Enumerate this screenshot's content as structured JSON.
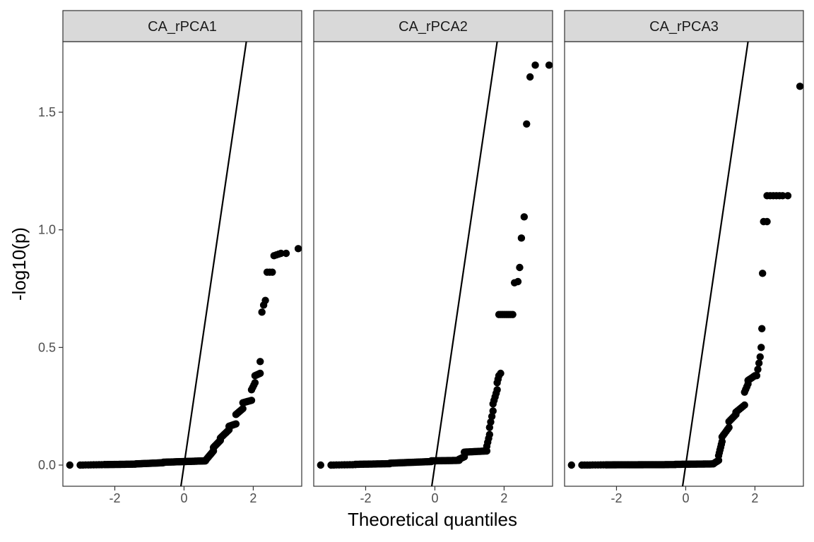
{
  "chart_data": {
    "type": "scatter",
    "subtype": "qq-plot",
    "xlabel": "Theoretical quantiles",
    "ylabel": "-log10(p)",
    "xlim": [
      -3.5,
      3.4
    ],
    "ylim": [
      -0.09,
      1.8
    ],
    "x_ticks": [
      -2,
      0,
      2
    ],
    "y_ticks": [
      0.0,
      0.5,
      1.0,
      1.5
    ],
    "x_tick_labels": [
      "-2",
      "0",
      "2"
    ],
    "y_tick_labels": [
      "0.0",
      "0.5",
      "1.0",
      "1.5"
    ],
    "reference_line": {
      "slope": 1,
      "intercept": 0
    },
    "grid": false,
    "panels": [
      {
        "name": "CA_rPCA1",
        "label": "CA_rPCA1",
        "segments": [
          {
            "x0": -3.3,
            "x1": -3.3,
            "y0": 0.0,
            "y1": 0.0,
            "n": 1
          },
          {
            "x0": -3.0,
            "x1": -2.3,
            "y0": 0.0,
            "y1": 0.002,
            "n": 10
          },
          {
            "x0": -2.3,
            "x1": -1.4,
            "y0": 0.002,
            "y1": 0.004,
            "n": 30
          },
          {
            "x0": -1.4,
            "x1": -0.6,
            "y0": 0.005,
            "y1": 0.01,
            "n": 40
          },
          {
            "x0": -0.6,
            "x1": 0.2,
            "y0": 0.012,
            "y1": 0.016,
            "n": 40
          },
          {
            "x0": 0.2,
            "x1": 0.62,
            "y0": 0.016,
            "y1": 0.018,
            "n": 25
          },
          {
            "x0": 0.65,
            "x1": 0.85,
            "y0": 0.025,
            "y1": 0.06,
            "n": 10
          },
          {
            "x0": 0.85,
            "x1": 1.05,
            "y0": 0.075,
            "y1": 0.105,
            "n": 10
          },
          {
            "x0": 1.05,
            "x1": 1.3,
            "y0": 0.115,
            "y1": 0.15,
            "n": 10
          },
          {
            "x0": 1.3,
            "x1": 1.5,
            "y0": 0.165,
            "y1": 0.175,
            "n": 8
          },
          {
            "x0": 1.5,
            "x1": 1.7,
            "y0": 0.215,
            "y1": 0.24,
            "n": 8
          },
          {
            "x0": 1.7,
            "x1": 1.95,
            "y0": 0.265,
            "y1": 0.275,
            "n": 8
          },
          {
            "x0": 1.95,
            "x1": 2.05,
            "y0": 0.32,
            "y1": 0.35,
            "n": 4
          },
          {
            "x0": 2.05,
            "x1": 2.2,
            "y0": 0.38,
            "y1": 0.39,
            "n": 5
          },
          {
            "x0": 2.2,
            "x1": 2.2,
            "y0": 0.44,
            "y1": 0.44,
            "n": 1
          },
          {
            "x0": 2.25,
            "x1": 2.25,
            "y0": 0.65,
            "y1": 0.65,
            "n": 1
          },
          {
            "x0": 2.3,
            "x1": 2.3,
            "y0": 0.68,
            "y1": 0.68,
            "n": 1
          },
          {
            "x0": 2.35,
            "x1": 2.35,
            "y0": 0.7,
            "y1": 0.7,
            "n": 1
          },
          {
            "x0": 2.4,
            "x1": 2.55,
            "y0": 0.82,
            "y1": 0.82,
            "n": 3
          },
          {
            "x0": 2.6,
            "x1": 2.8,
            "y0": 0.89,
            "y1": 0.9,
            "n": 4
          },
          {
            "x0": 2.95,
            "x1": 2.95,
            "y0": 0.9,
            "y1": 0.9,
            "n": 1
          },
          {
            "x0": 3.3,
            "x1": 3.3,
            "y0": 0.92,
            "y1": 0.92,
            "n": 1
          }
        ]
      },
      {
        "name": "CA_rPCA2",
        "label": "CA_rPCA2",
        "segments": [
          {
            "x0": -3.3,
            "x1": -3.3,
            "y0": 0.0,
            "y1": 0.0,
            "n": 1
          },
          {
            "x0": -3.0,
            "x1": -2.3,
            "y0": 0.0,
            "y1": 0.002,
            "n": 10
          },
          {
            "x0": -2.3,
            "x1": -1.3,
            "y0": 0.003,
            "y1": 0.006,
            "n": 30
          },
          {
            "x0": -1.3,
            "x1": -0.1,
            "y0": 0.008,
            "y1": 0.015,
            "n": 40
          },
          {
            "x0": -0.1,
            "x1": 0.7,
            "y0": 0.018,
            "y1": 0.02,
            "n": 30
          },
          {
            "x0": 0.7,
            "x1": 0.85,
            "y0": 0.025,
            "y1": 0.035,
            "n": 5
          },
          {
            "x0": 0.85,
            "x1": 1.5,
            "y0": 0.055,
            "y1": 0.06,
            "n": 20
          },
          {
            "x0": 1.5,
            "x1": 1.58,
            "y0": 0.08,
            "y1": 0.13,
            "n": 4
          },
          {
            "x0": 1.58,
            "x1": 1.68,
            "y0": 0.16,
            "y1": 0.23,
            "n": 4
          },
          {
            "x0": 1.68,
            "x1": 1.8,
            "y0": 0.26,
            "y1": 0.32,
            "n": 5
          },
          {
            "x0": 1.8,
            "x1": 1.85,
            "y0": 0.35,
            "y1": 0.38,
            "n": 3
          },
          {
            "x0": 1.9,
            "x1": 1.9,
            "y0": 0.39,
            "y1": 0.39,
            "n": 1
          },
          {
            "x0": 1.85,
            "x1": 2.25,
            "y0": 0.64,
            "y1": 0.64,
            "n": 8
          },
          {
            "x0": 2.3,
            "x1": 2.4,
            "y0": 0.775,
            "y1": 0.78,
            "n": 2
          },
          {
            "x0": 2.45,
            "x1": 2.45,
            "y0": 0.84,
            "y1": 0.84,
            "n": 1
          },
          {
            "x0": 2.5,
            "x1": 2.5,
            "y0": 0.965,
            "y1": 0.965,
            "n": 1
          },
          {
            "x0": 2.58,
            "x1": 2.58,
            "y0": 1.055,
            "y1": 1.055,
            "n": 1
          },
          {
            "x0": 2.65,
            "x1": 2.65,
            "y0": 1.45,
            "y1": 1.45,
            "n": 1
          },
          {
            "x0": 2.75,
            "x1": 2.75,
            "y0": 1.65,
            "y1": 1.65,
            "n": 1
          },
          {
            "x0": 2.9,
            "x1": 2.9,
            "y0": 1.7,
            "y1": 1.7,
            "n": 1
          },
          {
            "x0": 3.3,
            "x1": 3.3,
            "y0": 1.7,
            "y1": 1.7,
            "n": 1
          }
        ]
      },
      {
        "name": "CA_rPCA3",
        "label": "CA_rPCA3",
        "segments": [
          {
            "x0": -3.3,
            "x1": -3.3,
            "y0": 0.0,
            "y1": 0.0,
            "n": 1
          },
          {
            "x0": -3.0,
            "x1": -2.3,
            "y0": 0.0,
            "y1": 0.001,
            "n": 10
          },
          {
            "x0": -2.3,
            "x1": -0.3,
            "y0": 0.001,
            "y1": 0.002,
            "n": 50
          },
          {
            "x0": -0.3,
            "x1": 0.8,
            "y0": 0.003,
            "y1": 0.005,
            "n": 35
          },
          {
            "x0": 0.8,
            "x1": 0.95,
            "y0": 0.006,
            "y1": 0.02,
            "n": 6
          },
          {
            "x0": 0.95,
            "x1": 1.05,
            "y0": 0.04,
            "y1": 0.1,
            "n": 6
          },
          {
            "x0": 1.05,
            "x1": 1.25,
            "y0": 0.12,
            "y1": 0.16,
            "n": 6
          },
          {
            "x0": 1.25,
            "x1": 1.45,
            "y0": 0.185,
            "y1": 0.215,
            "n": 6
          },
          {
            "x0": 1.45,
            "x1": 1.7,
            "y0": 0.225,
            "y1": 0.255,
            "n": 6
          },
          {
            "x0": 1.7,
            "x1": 1.8,
            "y0": 0.31,
            "y1": 0.345,
            "n": 4
          },
          {
            "x0": 1.8,
            "x1": 2.0,
            "y0": 0.36,
            "y1": 0.38,
            "n": 5
          },
          {
            "x0": 2.05,
            "x1": 2.15,
            "y0": 0.38,
            "y1": 0.46,
            "n": 4
          },
          {
            "x0": 2.18,
            "x1": 2.18,
            "y0": 0.5,
            "y1": 0.5,
            "n": 1
          },
          {
            "x0": 2.2,
            "x1": 2.2,
            "y0": 0.58,
            "y1": 0.58,
            "n": 1
          },
          {
            "x0": 2.22,
            "x1": 2.22,
            "y0": 0.815,
            "y1": 0.815,
            "n": 1
          },
          {
            "x0": 2.25,
            "x1": 2.35,
            "y0": 1.035,
            "y1": 1.035,
            "n": 2
          },
          {
            "x0": 2.35,
            "x1": 2.8,
            "y0": 1.145,
            "y1": 1.145,
            "n": 6
          },
          {
            "x0": 2.95,
            "x1": 2.95,
            "y0": 1.145,
            "y1": 1.145,
            "n": 1
          },
          {
            "x0": 3.3,
            "x1": 3.3,
            "y0": 1.61,
            "y1": 1.61,
            "n": 1
          }
        ]
      }
    ]
  }
}
